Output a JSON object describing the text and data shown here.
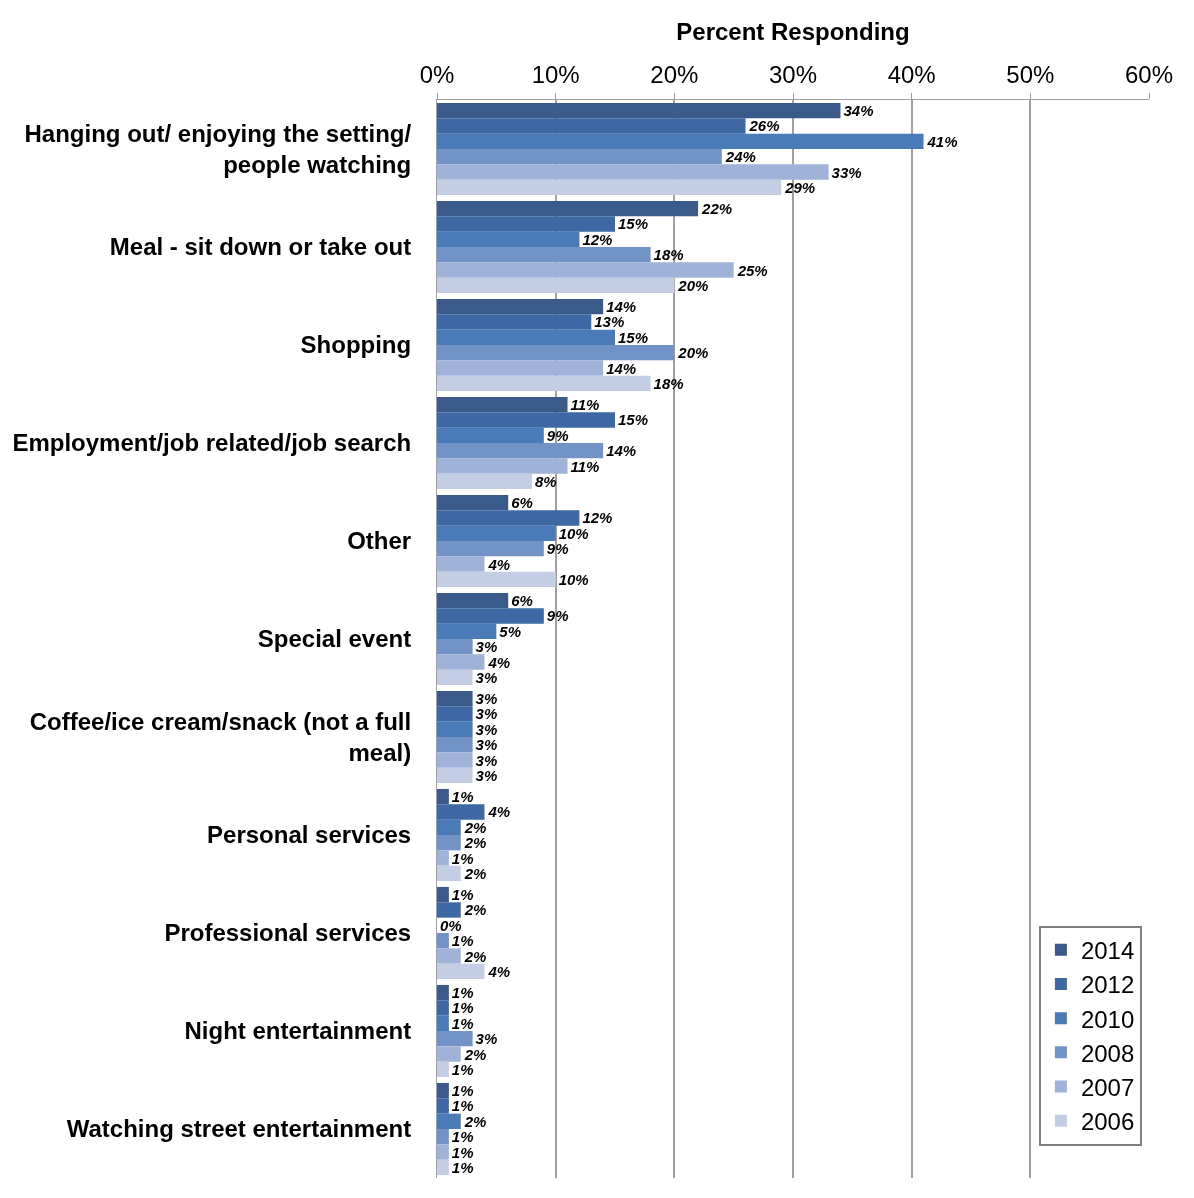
{
  "chart_data": {
    "type": "bar",
    "orientation": "horizontal",
    "xlabel": "Percent Responding",
    "categories": [
      "Hanging out/ enjoying the setting/ people watching",
      "Meal - sit down or take out",
      "Shopping",
      "Employment/job related/job search",
      "Other",
      "Special event",
      "Coffee/ice cream/snack (not a full meal)",
      "Personal services",
      "Professional services",
      "Night entertainment",
      "Watching street entertainment"
    ],
    "series": [
      {
        "name": "2014",
        "color": "#3a5a8a",
        "values": [
          34,
          22,
          14,
          11,
          6,
          6,
          3,
          1,
          1,
          1,
          1
        ],
        "value_labels": [
          "34%",
          "22%",
          "14%",
          "11%",
          "6%",
          "6%",
          "3%",
          "1%",
          "1%",
          "1%",
          "1%"
        ]
      },
      {
        "name": "2012",
        "color": "#3e68a3",
        "values": [
          26,
          15,
          13,
          15,
          12,
          9,
          3,
          4,
          2,
          1,
          1
        ],
        "value_labels": [
          "26%",
          "15%",
          "13%",
          "15%",
          "12%",
          "9%",
          "3%",
          "4%",
          "2%",
          "1%",
          "1%"
        ]
      },
      {
        "name": "2010",
        "color": "#4a7ab8",
        "values": [
          41,
          12,
          15,
          9,
          10,
          5,
          3,
          2,
          0,
          1,
          2
        ],
        "value_labels": [
          "41%",
          "12%",
          "15%",
          "9%",
          "10%",
          "5%",
          "3%",
          "2%",
          "0%",
          "1%",
          "2%"
        ]
      },
      {
        "name": "2008",
        "color": "#7293c6",
        "values": [
          24,
          18,
          20,
          14,
          9,
          3,
          3,
          2,
          1,
          3,
          1
        ],
        "value_labels": [
          "24%",
          "18%",
          "20%",
          "14%",
          "9%",
          "3%",
          "3%",
          "2%",
          "1%",
          "3%",
          "1%"
        ]
      },
      {
        "name": "2007",
        "color": "#9fb3d8",
        "values": [
          33,
          25,
          14,
          11,
          4,
          4,
          3,
          1,
          2,
          2,
          1
        ],
        "value_labels": [
          "33%",
          "25%",
          "14%",
          "11%",
          "4%",
          "4%",
          "3%",
          "1%",
          "2%",
          "2%",
          "1%"
        ]
      },
      {
        "name": "2006",
        "color": "#c3cee5",
        "values": [
          29,
          20,
          18,
          8,
          10,
          3,
          3,
          2,
          4,
          1,
          1
        ],
        "value_labels": [
          "29%",
          "20%",
          "18%",
          "8%",
          "10%",
          "3%",
          "3%",
          "2%",
          "4%",
          "1%",
          "1%"
        ]
      }
    ],
    "xlim": [
      0,
      60
    ],
    "xticks": [
      {
        "value": 0,
        "label": "0%"
      },
      {
        "value": 10,
        "label": "10%"
      },
      {
        "value": 20,
        "label": "20%"
      },
      {
        "value": 30,
        "label": "30%"
      },
      {
        "value": 40,
        "label": "40%"
      },
      {
        "value": 50,
        "label": "50%"
      },
      {
        "value": 60,
        "label": "60%"
      }
    ],
    "grid": "x",
    "legend": "bottom right"
  }
}
